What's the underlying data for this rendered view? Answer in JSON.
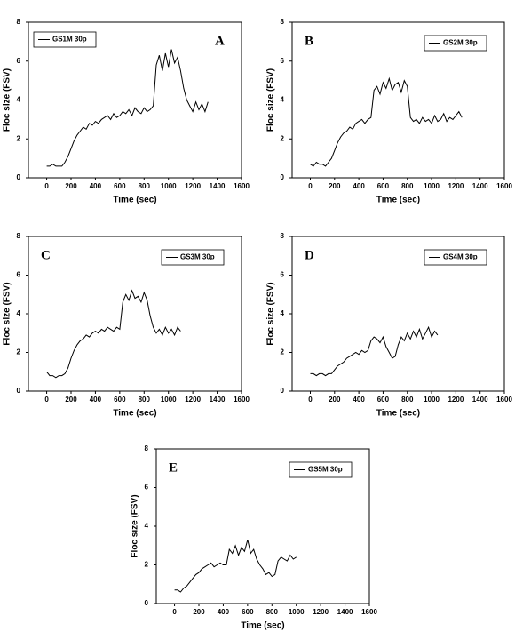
{
  "chart_data": [
    {
      "type": "line",
      "panel_label": "A",
      "xlabel": "Time (sec)",
      "ylabel": "Floc size (FSV)",
      "legend": "upper left",
      "xlim": [
        -150,
        1600
      ],
      "ylim": [
        0,
        8
      ],
      "xticks": [
        0,
        200,
        400,
        600,
        800,
        1000,
        1200,
        1400,
        1600
      ],
      "yticks": [
        0,
        2,
        4,
        6,
        8
      ],
      "x": [
        0,
        25,
        50,
        75,
        100,
        125,
        150,
        175,
        200,
        225,
        250,
        275,
        300,
        325,
        350,
        375,
        400,
        425,
        450,
        475,
        500,
        525,
        550,
        575,
        600,
        625,
        650,
        675,
        700,
        725,
        750,
        775,
        800,
        825,
        850,
        875,
        900,
        925,
        950,
        975,
        1000,
        1025,
        1050,
        1075,
        1100,
        1125,
        1150,
        1175,
        1200,
        1225,
        1250,
        1275,
        1300,
        1325
      ],
      "series": [
        {
          "name": "GS1M 30p",
          "color": "#000000",
          "values": [
            0.6,
            0.6,
            0.7,
            0.6,
            0.6,
            0.6,
            0.8,
            1.1,
            1.5,
            1.9,
            2.2,
            2.4,
            2.6,
            2.5,
            2.8,
            2.7,
            2.9,
            2.8,
            3.0,
            3.1,
            3.2,
            3.0,
            3.3,
            3.1,
            3.2,
            3.4,
            3.3,
            3.5,
            3.2,
            3.6,
            3.4,
            3.3,
            3.6,
            3.4,
            3.5,
            3.7,
            5.8,
            6.3,
            5.5,
            6.4,
            5.7,
            6.6,
            5.9,
            6.2,
            5.5,
            4.6,
            4.0,
            3.7,
            3.4,
            3.9,
            3.5,
            3.8,
            3.4,
            3.9
          ]
        }
      ]
    },
    {
      "type": "line",
      "panel_label": "B",
      "xlabel": "Time (sec)",
      "ylabel": "Floc size (FSV)",
      "legend": "upper right",
      "xlim": [
        -150,
        1600
      ],
      "ylim": [
        0,
        8
      ],
      "xticks": [
        0,
        200,
        400,
        600,
        800,
        1000,
        1200,
        1400,
        1600
      ],
      "yticks": [
        0,
        2,
        4,
        6,
        8
      ],
      "x": [
        0,
        25,
        50,
        75,
        100,
        125,
        150,
        175,
        200,
        225,
        250,
        275,
        300,
        325,
        350,
        375,
        400,
        425,
        450,
        475,
        500,
        525,
        550,
        575,
        600,
        625,
        650,
        675,
        700,
        725,
        750,
        775,
        800,
        825,
        850,
        875,
        900,
        925,
        950,
        975,
        1000,
        1025,
        1050,
        1075,
        1100,
        1125,
        1150,
        1175,
        1200,
        1225,
        1250
      ],
      "series": [
        {
          "name": "GS2M 30p",
          "color": "#000000",
          "values": [
            0.7,
            0.6,
            0.8,
            0.7,
            0.7,
            0.6,
            0.8,
            1.0,
            1.4,
            1.8,
            2.1,
            2.3,
            2.4,
            2.6,
            2.5,
            2.8,
            2.9,
            3.0,
            2.8,
            3.0,
            3.1,
            4.5,
            4.7,
            4.3,
            4.9,
            4.6,
            5.1,
            4.5,
            4.8,
            4.9,
            4.4,
            5.0,
            4.7,
            3.1,
            2.9,
            3.0,
            2.8,
            3.1,
            2.9,
            3.0,
            2.8,
            3.2,
            2.9,
            3.0,
            3.3,
            2.9,
            3.1,
            3.0,
            3.2,
            3.4,
            3.1
          ]
        }
      ]
    },
    {
      "type": "line",
      "panel_label": "C",
      "xlabel": "Time (sec)",
      "ylabel": "Floc size (FSV)",
      "legend": "upper right",
      "xlim": [
        -150,
        1600
      ],
      "ylim": [
        0,
        8
      ],
      "xticks": [
        0,
        200,
        400,
        600,
        800,
        1000,
        1200,
        1400,
        1600
      ],
      "yticks": [
        0,
        2,
        4,
        6,
        8
      ],
      "x": [
        0,
        25,
        50,
        75,
        100,
        125,
        150,
        175,
        200,
        225,
        250,
        275,
        300,
        325,
        350,
        375,
        400,
        425,
        450,
        475,
        500,
        525,
        550,
        575,
        600,
        625,
        650,
        675,
        700,
        725,
        750,
        775,
        800,
        825,
        850,
        875,
        900,
        925,
        950,
        975,
        1000,
        1025,
        1050,
        1075,
        1100
      ],
      "series": [
        {
          "name": "GS3M 30p",
          "color": "#000000",
          "values": [
            1.0,
            0.8,
            0.8,
            0.7,
            0.8,
            0.8,
            0.9,
            1.2,
            1.7,
            2.1,
            2.4,
            2.6,
            2.7,
            2.9,
            2.8,
            3.0,
            3.1,
            3.0,
            3.2,
            3.1,
            3.3,
            3.2,
            3.1,
            3.3,
            3.2,
            4.6,
            5.0,
            4.7,
            5.2,
            4.8,
            4.9,
            4.6,
            5.1,
            4.7,
            3.9,
            3.3,
            3.0,
            3.2,
            2.9,
            3.3,
            3.0,
            3.2,
            2.9,
            3.3,
            3.1
          ]
        }
      ]
    },
    {
      "type": "line",
      "panel_label": "D",
      "xlabel": "Time (sec)",
      "ylabel": "Floc size (FSV)",
      "legend": "upper right",
      "xlim": [
        -150,
        1600
      ],
      "ylim": [
        0,
        8
      ],
      "xticks": [
        0,
        200,
        400,
        600,
        800,
        1000,
        1200,
        1400,
        1600
      ],
      "yticks": [
        0,
        2,
        4,
        6,
        8
      ],
      "x": [
        0,
        25,
        50,
        75,
        100,
        125,
        150,
        175,
        200,
        225,
        250,
        275,
        300,
        325,
        350,
        375,
        400,
        425,
        450,
        475,
        500,
        525,
        550,
        575,
        600,
        625,
        650,
        675,
        700,
        725,
        750,
        775,
        800,
        825,
        850,
        875,
        900,
        925,
        950,
        975,
        1000,
        1025,
        1050
      ],
      "series": [
        {
          "name": "GS4M 30p",
          "color": "#000000",
          "values": [
            0.9,
            0.9,
            0.8,
            0.9,
            0.9,
            0.8,
            0.9,
            0.9,
            1.1,
            1.3,
            1.4,
            1.5,
            1.7,
            1.8,
            1.9,
            2.0,
            1.9,
            2.1,
            2.0,
            2.1,
            2.6,
            2.8,
            2.7,
            2.5,
            2.8,
            2.3,
            2.0,
            1.7,
            1.8,
            2.4,
            2.8,
            2.6,
            3.0,
            2.7,
            3.1,
            2.8,
            3.2,
            2.7,
            3.0,
            3.3,
            2.8,
            3.1,
            2.9
          ]
        }
      ]
    },
    {
      "type": "line",
      "panel_label": "E",
      "xlabel": "Time (sec)",
      "ylabel": "Floc size (FSV)",
      "legend": "upper right",
      "xlim": [
        -150,
        1600
      ],
      "ylim": [
        0,
        8
      ],
      "xticks": [
        0,
        200,
        400,
        600,
        800,
        1000,
        1200,
        1400,
        1600
      ],
      "yticks": [
        0,
        2,
        4,
        6,
        8
      ],
      "x": [
        0,
        25,
        50,
        75,
        100,
        125,
        150,
        175,
        200,
        225,
        250,
        275,
        300,
        325,
        350,
        375,
        400,
        425,
        450,
        475,
        500,
        525,
        550,
        575,
        600,
        625,
        650,
        675,
        700,
        725,
        750,
        775,
        800,
        825,
        850,
        875,
        900,
        925,
        950,
        975,
        1000
      ],
      "series": [
        {
          "name": "GS5M 30p",
          "color": "#000000",
          "values": [
            0.7,
            0.7,
            0.6,
            0.8,
            0.9,
            1.1,
            1.3,
            1.5,
            1.6,
            1.8,
            1.9,
            2.0,
            2.1,
            1.9,
            2.0,
            2.1,
            2.0,
            2.0,
            2.8,
            2.6,
            3.0,
            2.5,
            2.9,
            2.7,
            3.3,
            2.6,
            2.8,
            2.3,
            2.0,
            1.8,
            1.5,
            1.6,
            1.4,
            1.5,
            2.2,
            2.4,
            2.3,
            2.2,
            2.5,
            2.3,
            2.4
          ]
        }
      ]
    }
  ]
}
